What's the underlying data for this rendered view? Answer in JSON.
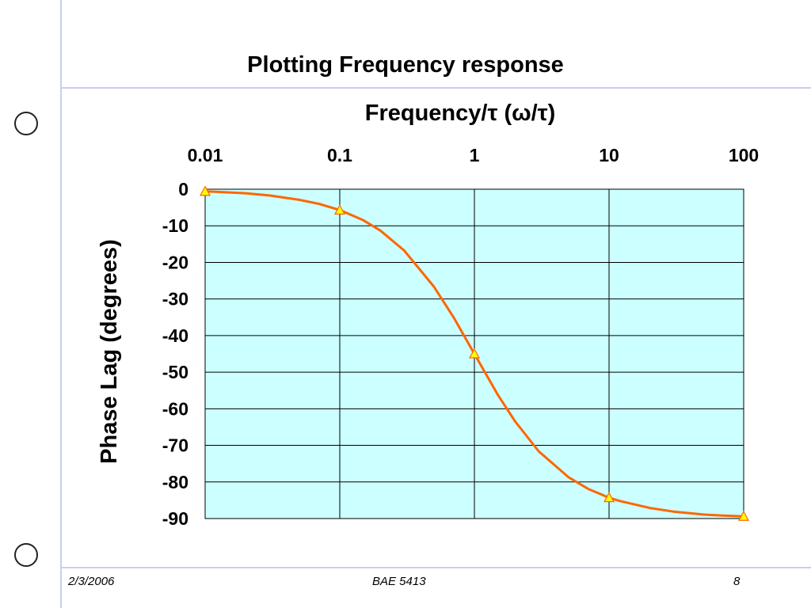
{
  "slide": {
    "title": "Plotting Frequency response",
    "footer": {
      "date": "2/3/2006",
      "course": "BAE 5413",
      "page": "8"
    }
  },
  "colors": {
    "plot_background": "#ccffff",
    "grid": "#000000",
    "line": "#ff6600",
    "marker_fill": "#ffff00",
    "marker_stroke": "#ff6600",
    "decor_rule": "#c9cdf3"
  },
  "chart_data": {
    "type": "line",
    "xscale": "log",
    "xaxis_position": "top",
    "xlabel": "Frequency/τ (ω/τ)",
    "ylabel": "Phase Lag (degrees)",
    "xlim": [
      0.01,
      100
    ],
    "ylim": [
      -90,
      0
    ],
    "xticks": [
      "0.01",
      "0.1",
      "1",
      "10",
      "100"
    ],
    "yticks": [
      "0",
      "-10",
      "-20",
      "-30",
      "-40",
      "-50",
      "-60",
      "-70",
      "-80",
      "-90"
    ],
    "grid": true,
    "series": [
      {
        "type": "curve",
        "x": [
          0.01,
          0.012,
          0.02,
          0.03,
          0.05,
          0.07,
          0.1,
          0.15,
          0.2,
          0.3,
          0.5,
          0.7,
          1,
          1.5,
          2,
          3,
          5,
          7,
          10,
          12,
          20,
          30,
          50,
          70,
          100
        ],
        "values": [
          -0.6,
          -0.7,
          -1.1,
          -1.7,
          -2.9,
          -4.0,
          -5.7,
          -8.5,
          -11.3,
          -16.7,
          -26.6,
          -35.0,
          -45.0,
          -56.3,
          -63.4,
          -71.6,
          -78.7,
          -81.9,
          -84.3,
          -85.2,
          -87.1,
          -88.1,
          -88.9,
          -89.2,
          -89.4
        ]
      },
      {
        "type": "markers",
        "x": [
          0.01,
          0.1,
          1,
          10,
          100
        ],
        "values": [
          -0.6,
          -5.7,
          -45.0,
          -84.3,
          -89.4
        ]
      }
    ]
  }
}
